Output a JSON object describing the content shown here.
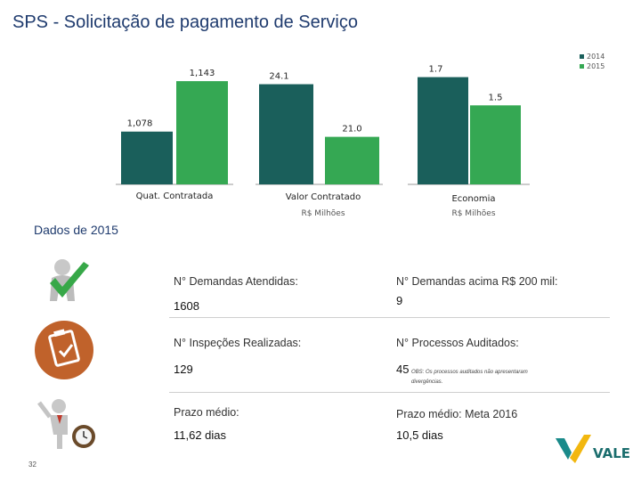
{
  "slide": {
    "title": "SPS - Solicitação de pagamento de Serviço",
    "section_title": "Dados de 2015",
    "page_number": "32",
    "brand": "VALE"
  },
  "colors": {
    "c2014": "#1a5f5b",
    "c2015": "#35a853"
  },
  "chart_data": [
    {
      "type": "bar",
      "categories": [
        "Quat. Contratada"
      ],
      "subtitle": "",
      "series": [
        {
          "name": "2014",
          "values": [
            1078
          ],
          "labels": [
            "1,078"
          ]
        },
        {
          "name": "2015",
          "values": [
            1143
          ],
          "labels": [
            "1,143"
          ]
        }
      ],
      "ylim": [
        1010,
        1150
      ]
    },
    {
      "type": "bar",
      "categories": [
        "Valor Contratado"
      ],
      "subtitle": "R$ Milhões",
      "series": [
        {
          "name": "2014",
          "values": [
            24.1
          ],
          "labels": [
            "24.1"
          ]
        },
        {
          "name": "2015",
          "values": [
            21.0
          ],
          "labels": [
            "21.0"
          ]
        }
      ],
      "ylim": [
        18.2,
        24.6
      ]
    },
    {
      "type": "bar",
      "categories": [
        "Economia"
      ],
      "subtitle": "R$ Milhões",
      "series": [
        {
          "name": "2014",
          "values": [
            1.7
          ],
          "labels": [
            "1.7"
          ]
        },
        {
          "name": "2015",
          "values": [
            1.5
          ],
          "labels": [
            "1.5"
          ]
        }
      ],
      "ylim": [
        0.94,
        1.71
      ]
    }
  ],
  "legend": [
    {
      "label": "2014",
      "color": "#1a5f5b"
    },
    {
      "label": "2015",
      "color": "#35a853"
    }
  ],
  "stats": {
    "atendidas_label": "N° Demandas Atendidas:",
    "atendidas_value": "1608",
    "acima_label": "N° Demandas acima R$ 200 mil:",
    "acima_value": "9",
    "inspecoes_label": "N° Inspeções Realizadas:",
    "inspecoes_value": "129",
    "auditados_label": "N° Processos Auditados:",
    "auditados_value": "45",
    "auditados_note_1": "OBS: Os processos auditados não apresentaram",
    "auditados_note_2": "divergências.",
    "prazo_label": "Prazo médio:",
    "prazo_value": "11,62 dias",
    "meta_label": "Prazo médio: Meta 2016",
    "meta_value": "10,5 dias"
  }
}
